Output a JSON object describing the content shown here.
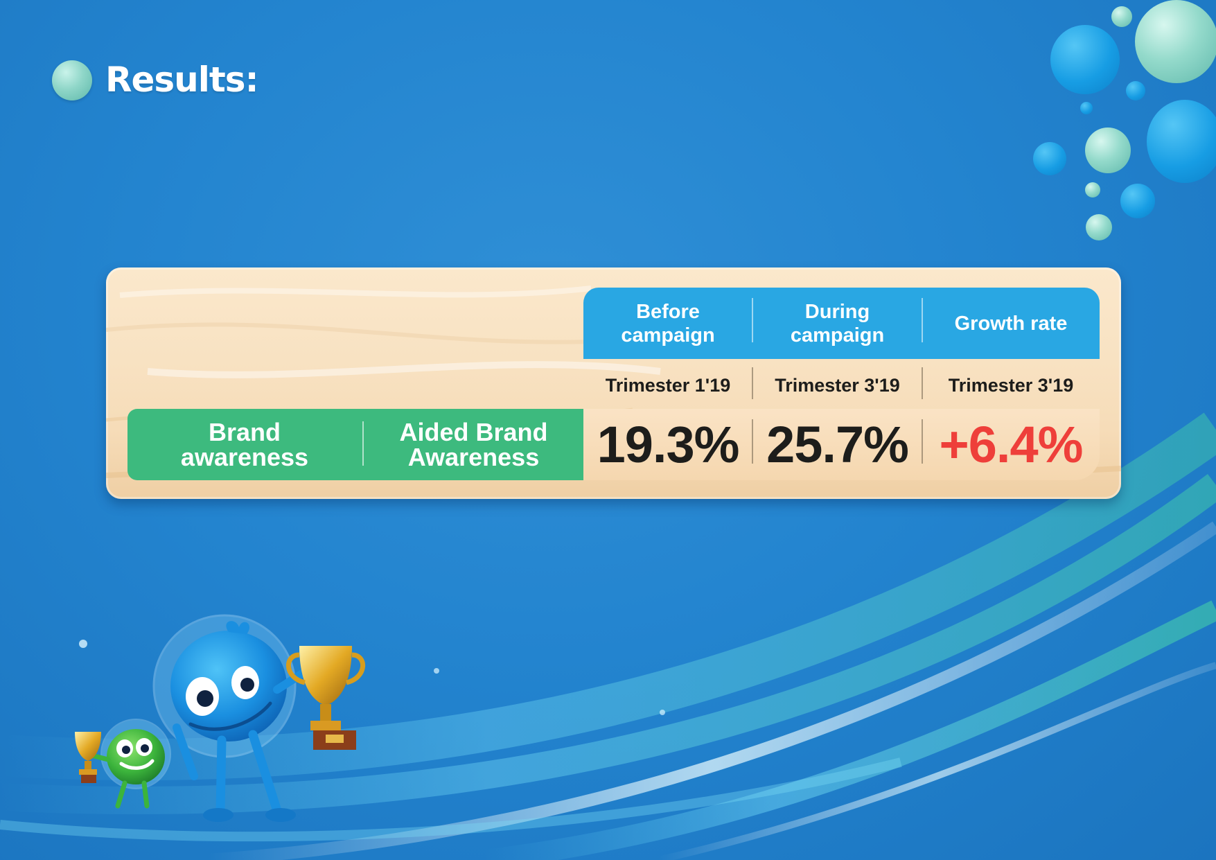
{
  "page": {
    "title": "Results:"
  },
  "table": {
    "columns": [
      {
        "header": "Before campaign",
        "period": "Trimester 1'19"
      },
      {
        "header": "During campaign",
        "period": "Trimester 3'19"
      },
      {
        "header": "Growth rate",
        "period": "Trimester 3'19"
      }
    ],
    "row": {
      "category": "Brand awareness",
      "metric": "Aided Brand Awareness",
      "values": [
        "19.3%",
        "25.7%",
        "+6.4%"
      ]
    }
  },
  "colors": {
    "background": "#2384cf",
    "header_blue": "#29a7e3",
    "row_green": "#3dba7e",
    "growth_red": "#ee3f3a",
    "board_wood": "#f8e2c2"
  },
  "icons": [
    "bubble-icon",
    "trophy-icon",
    "blue-mascot-icon",
    "green-mascot-icon"
  ]
}
